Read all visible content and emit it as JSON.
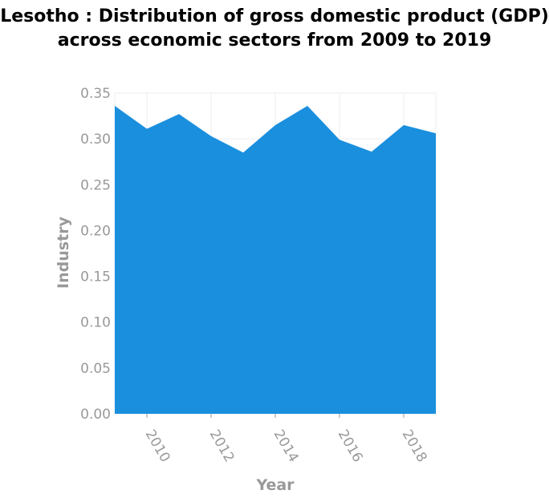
{
  "chart_data": {
    "type": "area",
    "title": "Lesotho : Distribution of gross domestic product (GDP) across economic sectors from 2009 to 2019",
    "xlabel": "Year",
    "ylabel": "Industry",
    "x": [
      2009,
      2010,
      2011,
      2012,
      2013,
      2014,
      2015,
      2016,
      2017,
      2018,
      2019
    ],
    "series": [
      {
        "values": [
          0.336,
          0.311,
          0.327,
          0.303,
          0.285,
          0.315,
          0.336,
          0.299,
          0.286,
          0.315,
          0.306
        ]
      }
    ],
    "xlim": [
      2009,
      2019
    ],
    "ylim": [
      0,
      0.35
    ],
    "xticks": [
      "2010",
      "2012",
      "2014",
      "2016",
      "2018"
    ],
    "yticks": [
      "0.00",
      "0.05",
      "0.10",
      "0.15",
      "0.20",
      "0.25",
      "0.30",
      "0.35"
    ],
    "grid": true,
    "fill_color": "#1a8fde",
    "grid_color": "#eeeeee"
  }
}
